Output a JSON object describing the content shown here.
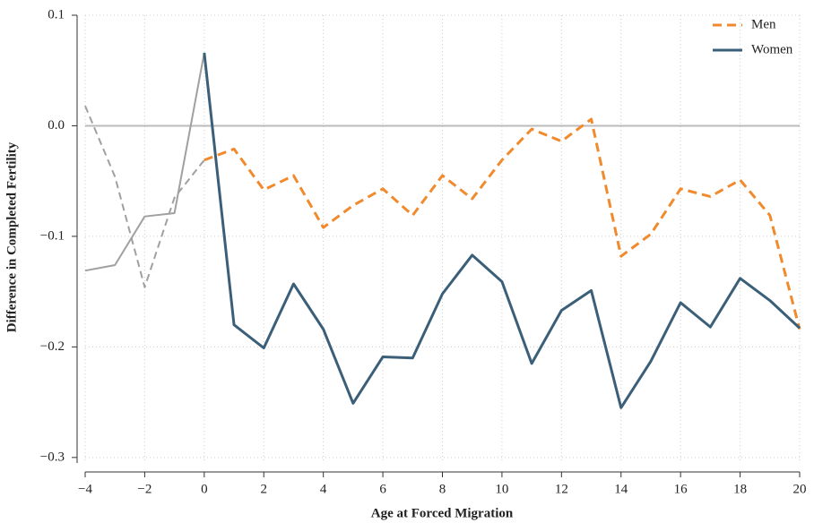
{
  "chart_data": {
    "type": "line",
    "x_label": "Age at Forced Migration",
    "y_label": "Difference in Completed Fertility",
    "x": [
      -4,
      -3,
      -2,
      -1,
      0,
      1,
      2,
      3,
      4,
      5,
      6,
      7,
      8,
      9,
      10,
      11,
      12,
      13,
      14,
      15,
      16,
      17,
      18,
      19,
      20
    ],
    "series": [
      {
        "name": "Men",
        "color": "#f08a2c",
        "dash": true,
        "values": [
          0.018,
          -0.046,
          -0.146,
          -0.065,
          -0.031,
          -0.021,
          -0.058,
          -0.045,
          -0.092,
          -0.072,
          -0.057,
          -0.081,
          -0.045,
          -0.066,
          -0.031,
          -0.003,
          -0.014,
          0.006,
          -0.118,
          -0.098,
          -0.057,
          -0.064,
          -0.049,
          -0.081,
          -0.184
        ]
      },
      {
        "name": "Women",
        "color": "#3b5f78",
        "dash": false,
        "values": [
          -0.131,
          -0.126,
          -0.082,
          -0.079,
          0.066,
          -0.18,
          -0.201,
          -0.143,
          -0.184,
          -0.251,
          -0.209,
          -0.21,
          -0.152,
          -0.117,
          -0.141,
          -0.215,
          -0.167,
          -0.149,
          -0.255,
          -0.213,
          -0.16,
          -0.182,
          -0.138,
          -0.158,
          -0.183
        ]
      }
    ],
    "muted_color": "#a0a0a0",
    "muted_until": 0,
    "hline": 0,
    "xlim": [
      -4,
      20
    ],
    "xticks": [
      {
        "value": -4,
        "label": "−4"
      },
      {
        "value": -2,
        "label": "−2"
      },
      0,
      2,
      4,
      6,
      8,
      10,
      12,
      14,
      16,
      18,
      20
    ],
    "ylim": [
      -0.305,
      0.1
    ],
    "yticks": [
      {
        "value": 0.1,
        "label": "0.1"
      },
      {
        "value": 0,
        "label": "0.0"
      },
      {
        "value": -0.1,
        "label": "−0.1"
      },
      {
        "value": -0.2,
        "label": "−0.2"
      },
      {
        "value": -0.3,
        "label": "−0.3"
      }
    ],
    "grid": true,
    "legend": "upper right"
  }
}
